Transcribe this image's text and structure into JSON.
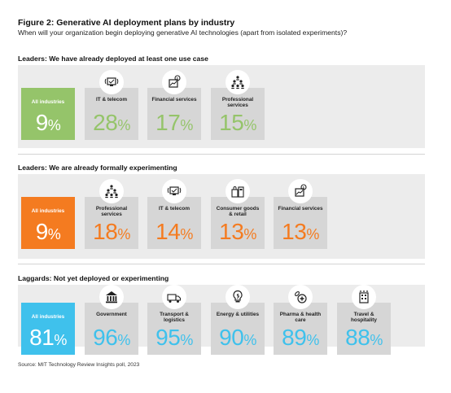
{
  "title": "Figure 2: Generative AI deployment plans by industry",
  "subtitle": "When will your organization begin deploying generative AI technologies (apart from isolated experiments)?",
  "source": "Source: MIT Technology Review Insights poll, 2023",
  "colors": {
    "green": "#95c46a",
    "orange": "#f47b20",
    "blue": "#3fc1ec",
    "card_gray": "#d6d6d6",
    "section_gray": "#ececec"
  },
  "chart_data": {
    "type": "table",
    "value_suffix": "%",
    "sections": [
      {
        "heading": "Leaders: We have already deployed at least one use case",
        "color": "#95c46a",
        "items": [
          {
            "label": "All industries",
            "value": 9,
            "highlight": true
          },
          {
            "label": "IT & telecom",
            "value": 28,
            "icon": "computer-signal-icon"
          },
          {
            "label": "Financial services",
            "value": 17,
            "icon": "finance-chart-icon"
          },
          {
            "label": "Professional services",
            "value": 15,
            "icon": "people-group-icon"
          }
        ]
      },
      {
        "heading": "Leaders: We are already formally experimenting",
        "color": "#f47b20",
        "items": [
          {
            "label": "All industries",
            "value": 9,
            "highlight": true
          },
          {
            "label": "Professional services",
            "value": 18,
            "icon": "people-group-icon"
          },
          {
            "label": "IT & telecom",
            "value": 14,
            "icon": "computer-signal-icon"
          },
          {
            "label": "Consumer goods & retail",
            "value": 13,
            "icon": "shopping-icon"
          },
          {
            "label": "Financial services",
            "value": 13,
            "icon": "finance-chart-icon"
          }
        ]
      },
      {
        "heading": "Laggards: Not yet deployed or experimenting",
        "color": "#3fc1ec",
        "items": [
          {
            "label": "All industries",
            "value": 81,
            "highlight": true
          },
          {
            "label": "Government",
            "value": 96,
            "icon": "government-building-icon"
          },
          {
            "label": "Transport & logistics",
            "value": 95,
            "icon": "truck-icon"
          },
          {
            "label": "Energy & utilities",
            "value": 90,
            "icon": "lightbulb-icon"
          },
          {
            "label": "Pharma & health care",
            "value": 89,
            "icon": "medical-cross-icon"
          },
          {
            "label": "Travel & hospitality",
            "value": 88,
            "icon": "hotel-icon"
          }
        ]
      }
    ]
  }
}
